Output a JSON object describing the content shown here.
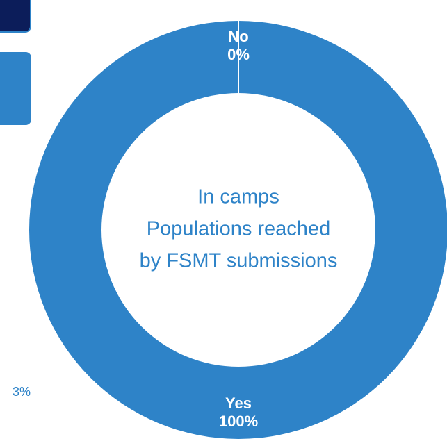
{
  "chart_data": {
    "type": "donut",
    "center_text": [
      "In camps",
      "Populations reached",
      "by FSMT submissions"
    ],
    "categories": [
      "No",
      "Yes"
    ],
    "values": [
      0,
      100
    ],
    "value_labels": [
      "0%",
      "100%"
    ],
    "colors": [
      "#2e83c8",
      "#2e83c8"
    ]
  },
  "side_panel": {
    "label": "3%"
  }
}
